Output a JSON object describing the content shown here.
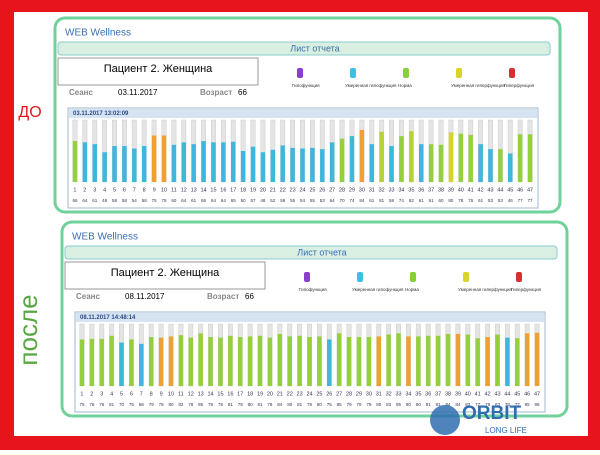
{
  "chart_data": [
    {
      "type": "bar",
      "title": "03.11.2017 13:02:09",
      "ylim": [
        0,
        100
      ],
      "categories": [
        1,
        2,
        3,
        4,
        5,
        6,
        7,
        8,
        9,
        10,
        11,
        12,
        13,
        14,
        15,
        16,
        17,
        18,
        19,
        20,
        21,
        22,
        23,
        24,
        25,
        26,
        27,
        28,
        29,
        30,
        31,
        32,
        33,
        34,
        35,
        36,
        37,
        38,
        39,
        40,
        41,
        42,
        43,
        44,
        45,
        46,
        47
      ],
      "values": [
        66,
        64,
        61,
        48,
        58,
        58,
        54,
        58,
        75,
        75,
        60,
        64,
        61,
        66,
        64,
        64,
        65,
        50,
        57,
        48,
        52,
        59,
        55,
        54,
        55,
        53,
        64,
        70,
        74,
        84,
        61,
        81,
        58,
        74,
        82,
        61,
        61,
        60,
        80,
        78,
        76,
        61,
        53,
        53,
        46,
        77,
        77
      ],
      "colors": [
        "#95cf3e",
        "#3fb6dc",
        "#3fb6dc",
        "#3fb6dc",
        "#3fb6dc",
        "#3fb6dc",
        "#3fb6dc",
        "#3fb6dc",
        "#f0a030",
        "#f0a030",
        "#3fb6dc",
        "#3fb6dc",
        "#3fb6dc",
        "#3fb6dc",
        "#3fb6dc",
        "#3fb6dc",
        "#3fb6dc",
        "#3fb6dc",
        "#3fb6dc",
        "#3fb6dc",
        "#3fb6dc",
        "#3fb6dc",
        "#3fb6dc",
        "#3fb6dc",
        "#3fb6dc",
        "#3fb6dc",
        "#3fb6dc",
        "#95cf3e",
        "#3fb6dc",
        "#f0a030",
        "#3fb6dc",
        "#b5d23a",
        "#3fb6dc",
        "#95cf3e",
        "#b5d23a",
        "#3fb6dc",
        "#95cf3e",
        "#95cf3e",
        "#d4d42a",
        "#95cf3e",
        "#95cf3e",
        "#3fb6dc",
        "#3fb6dc",
        "#95cf3e",
        "#3fb6dc",
        "#95cf3e",
        "#95cf3e"
      ]
    },
    {
      "type": "bar",
      "title": "08.11.2017 14:48:14",
      "ylim": [
        0,
        100
      ],
      "categories": [
        1,
        2,
        3,
        4,
        5,
        6,
        7,
        8,
        9,
        10,
        11,
        12,
        13,
        14,
        15,
        16,
        17,
        18,
        19,
        20,
        21,
        22,
        23,
        24,
        25,
        26,
        27,
        28,
        29,
        30,
        31,
        32,
        33,
        34,
        35,
        36,
        37,
        38,
        39,
        40,
        41,
        42,
        43,
        44,
        45,
        46,
        47
      ],
      "values": [
        75,
        76,
        76,
        81,
        70,
        75,
        68,
        79,
        78,
        80,
        82,
        78,
        85,
        79,
        78,
        81,
        79,
        80,
        81,
        78,
        84,
        80,
        81,
        79,
        80,
        75,
        85,
        79,
        79,
        79,
        80,
        83,
        85,
        80,
        80,
        81,
        81,
        84,
        84,
        83,
        77,
        79,
        83,
        78,
        77,
        85,
        86
      ],
      "colors": [
        "#95cf3e",
        "#95cf3e",
        "#95cf3e",
        "#95cf3e",
        "#3fb6dc",
        "#95cf3e",
        "#3fb6dc",
        "#95cf3e",
        "#f0a030",
        "#f0a030",
        "#95cf3e",
        "#95cf3e",
        "#95cf3e",
        "#95cf3e",
        "#95cf3e",
        "#95cf3e",
        "#95cf3e",
        "#95cf3e",
        "#95cf3e",
        "#95cf3e",
        "#95cf3e",
        "#95cf3e",
        "#95cf3e",
        "#95cf3e",
        "#95cf3e",
        "#3fb6dc",
        "#95cf3e",
        "#95cf3e",
        "#95cf3e",
        "#95cf3e",
        "#f0a030",
        "#95cf3e",
        "#95cf3e",
        "#f0a030",
        "#95cf3e",
        "#95cf3e",
        "#95cf3e",
        "#95cf3e",
        "#f0a030",
        "#95cf3e",
        "#95cf3e",
        "#f0a030",
        "#95cf3e",
        "#3fb6dc",
        "#95cf3e",
        "#f0a030",
        "#f0a030"
      ]
    }
  ],
  "panels": [
    {
      "side_label": "ДО",
      "app": "WEB Wellness",
      "report": "Лист отчета",
      "patient": "Пациент 2. Женщина",
      "session_label": "Сеанс",
      "session_date": "03.11.2017",
      "age_label": "Возраст",
      "age": "66",
      "legend": [
        {
          "name": "Гипофункция",
          "color": "#8a3fd0"
        },
        {
          "name": "Умеренная гипофункция",
          "color": "#3cc0e6"
        },
        {
          "name": "Норма",
          "color": "#86d03a"
        },
        {
          "name": "Умеренная гиперфункция",
          "color": "#d8d428"
        },
        {
          "name": "Гиперфункция",
          "color": "#d83030"
        }
      ]
    },
    {
      "side_label": "после",
      "app": "WEB Wellness",
      "report": "Лист отчета",
      "patient": "Пациент 2. Женщина",
      "session_label": "Сеанс",
      "session_date": "08.11.2017",
      "age_label": "Возраст",
      "age": "66",
      "legend": [
        {
          "name": "Гипофункция",
          "color": "#8a3fd0"
        },
        {
          "name": "Умеренная гипофункция",
          "color": "#3cc0e6"
        },
        {
          "name": "Норма",
          "color": "#86d03a"
        },
        {
          "name": "Умеренная гиперфункция",
          "color": "#d8d428"
        },
        {
          "name": "Гиперфункция",
          "color": "#d83030"
        }
      ]
    }
  ],
  "logo": {
    "name": "ORBIT",
    "tagline": "LONG LIFE"
  }
}
